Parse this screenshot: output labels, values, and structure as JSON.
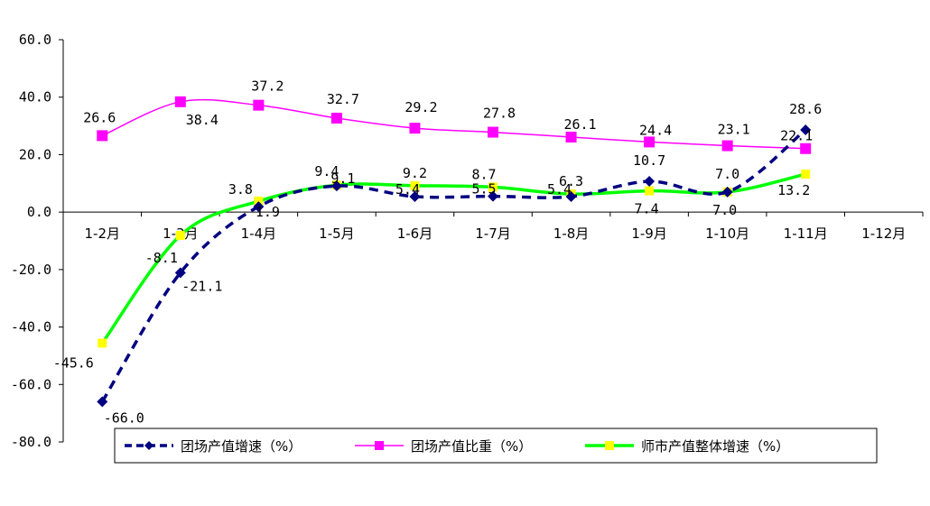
{
  "chart_data": {
    "type": "line",
    "title": "",
    "xlabel": "",
    "ylabel": "",
    "ylim": [
      -80,
      60
    ],
    "ytick_step": 20,
    "ytick_labels": [
      "60.0",
      "40.0",
      "20.0",
      "0.0",
      "-20.0",
      "-40.0",
      "-60.0",
      "-80.0"
    ],
    "categories": [
      "1-2月",
      "1-3月",
      "1-4月",
      "1-5月",
      "1-6月",
      "1-7月",
      "1-8月",
      "1-9月",
      "1-10月",
      "1-11月",
      "1-12月"
    ],
    "legend_position": "bottom",
    "series": [
      {
        "name": "团场产值增速（%）",
        "color": "#000080",
        "marker": "diamond",
        "dash": true,
        "values": [
          -66.0,
          -21.1,
          1.9,
          9.1,
          5.4,
          5.5,
          5.4,
          10.7,
          7.0,
          28.6,
          null
        ],
        "labels": [
          "-66.0",
          "-21.1",
          "1.9",
          "9.1",
          "5.4",
          "5.5",
          "5.4",
          "10.7",
          "7.0",
          "28.6",
          null
        ]
      },
      {
        "name": "团场产值比重（%）",
        "color": "#FF00FF",
        "marker": "square",
        "dash": false,
        "values": [
          26.6,
          38.4,
          37.2,
          32.7,
          29.2,
          27.8,
          26.1,
          24.4,
          23.1,
          22.1,
          null
        ],
        "labels": [
          "26.6",
          "38.4",
          "37.2",
          "32.7",
          "29.2",
          "27.8",
          "26.1",
          "24.4",
          "23.1",
          "22.1",
          null
        ]
      },
      {
        "name": "师市产值整体增速（%）",
        "color": "#00FF00",
        "marker": "square",
        "marker_color": "#FFFF00",
        "dash": false,
        "values": [
          -45.6,
          -8.1,
          3.8,
          9.4,
          9.2,
          8.7,
          6.3,
          7.4,
          7.0,
          13.2,
          null
        ],
        "labels": [
          "-45.6",
          "-8.1",
          "3.8",
          "9.4",
          "9.2",
          "8.7",
          "6.3",
          "7.4",
          "7.0",
          "13.2",
          null
        ]
      }
    ]
  }
}
